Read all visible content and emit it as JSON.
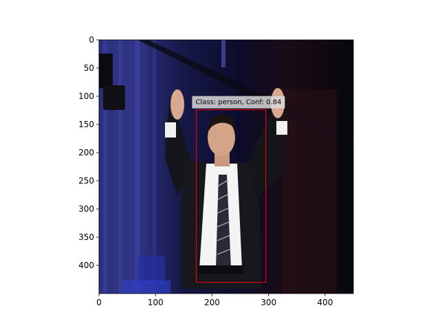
{
  "axes": {
    "x_ticks": [
      "0",
      "100",
      "200",
      "300",
      "400"
    ],
    "x_tick_values": [
      0,
      100,
      200,
      300,
      400
    ],
    "y_ticks": [
      "0",
      "50",
      "100",
      "150",
      "200",
      "250",
      "300",
      "350",
      "400"
    ],
    "y_tick_values": [
      0,
      50,
      100,
      150,
      200,
      250,
      300,
      350,
      400
    ],
    "x_range": [
      0,
      450
    ],
    "y_range": [
      0,
      450
    ],
    "y_inverted": true
  },
  "image": {
    "scene": "man in dark suit with raised hands on stage, purple-lit background"
  },
  "detection": {
    "label": "Class: person, Conf: 0.84",
    "class": "person",
    "confidence": 0.84,
    "box": {
      "x1": 172,
      "y1": 124,
      "x2": 295,
      "y2": 430
    },
    "box_color": "#ff0000",
    "label_bg": "#d9d9d9"
  }
}
